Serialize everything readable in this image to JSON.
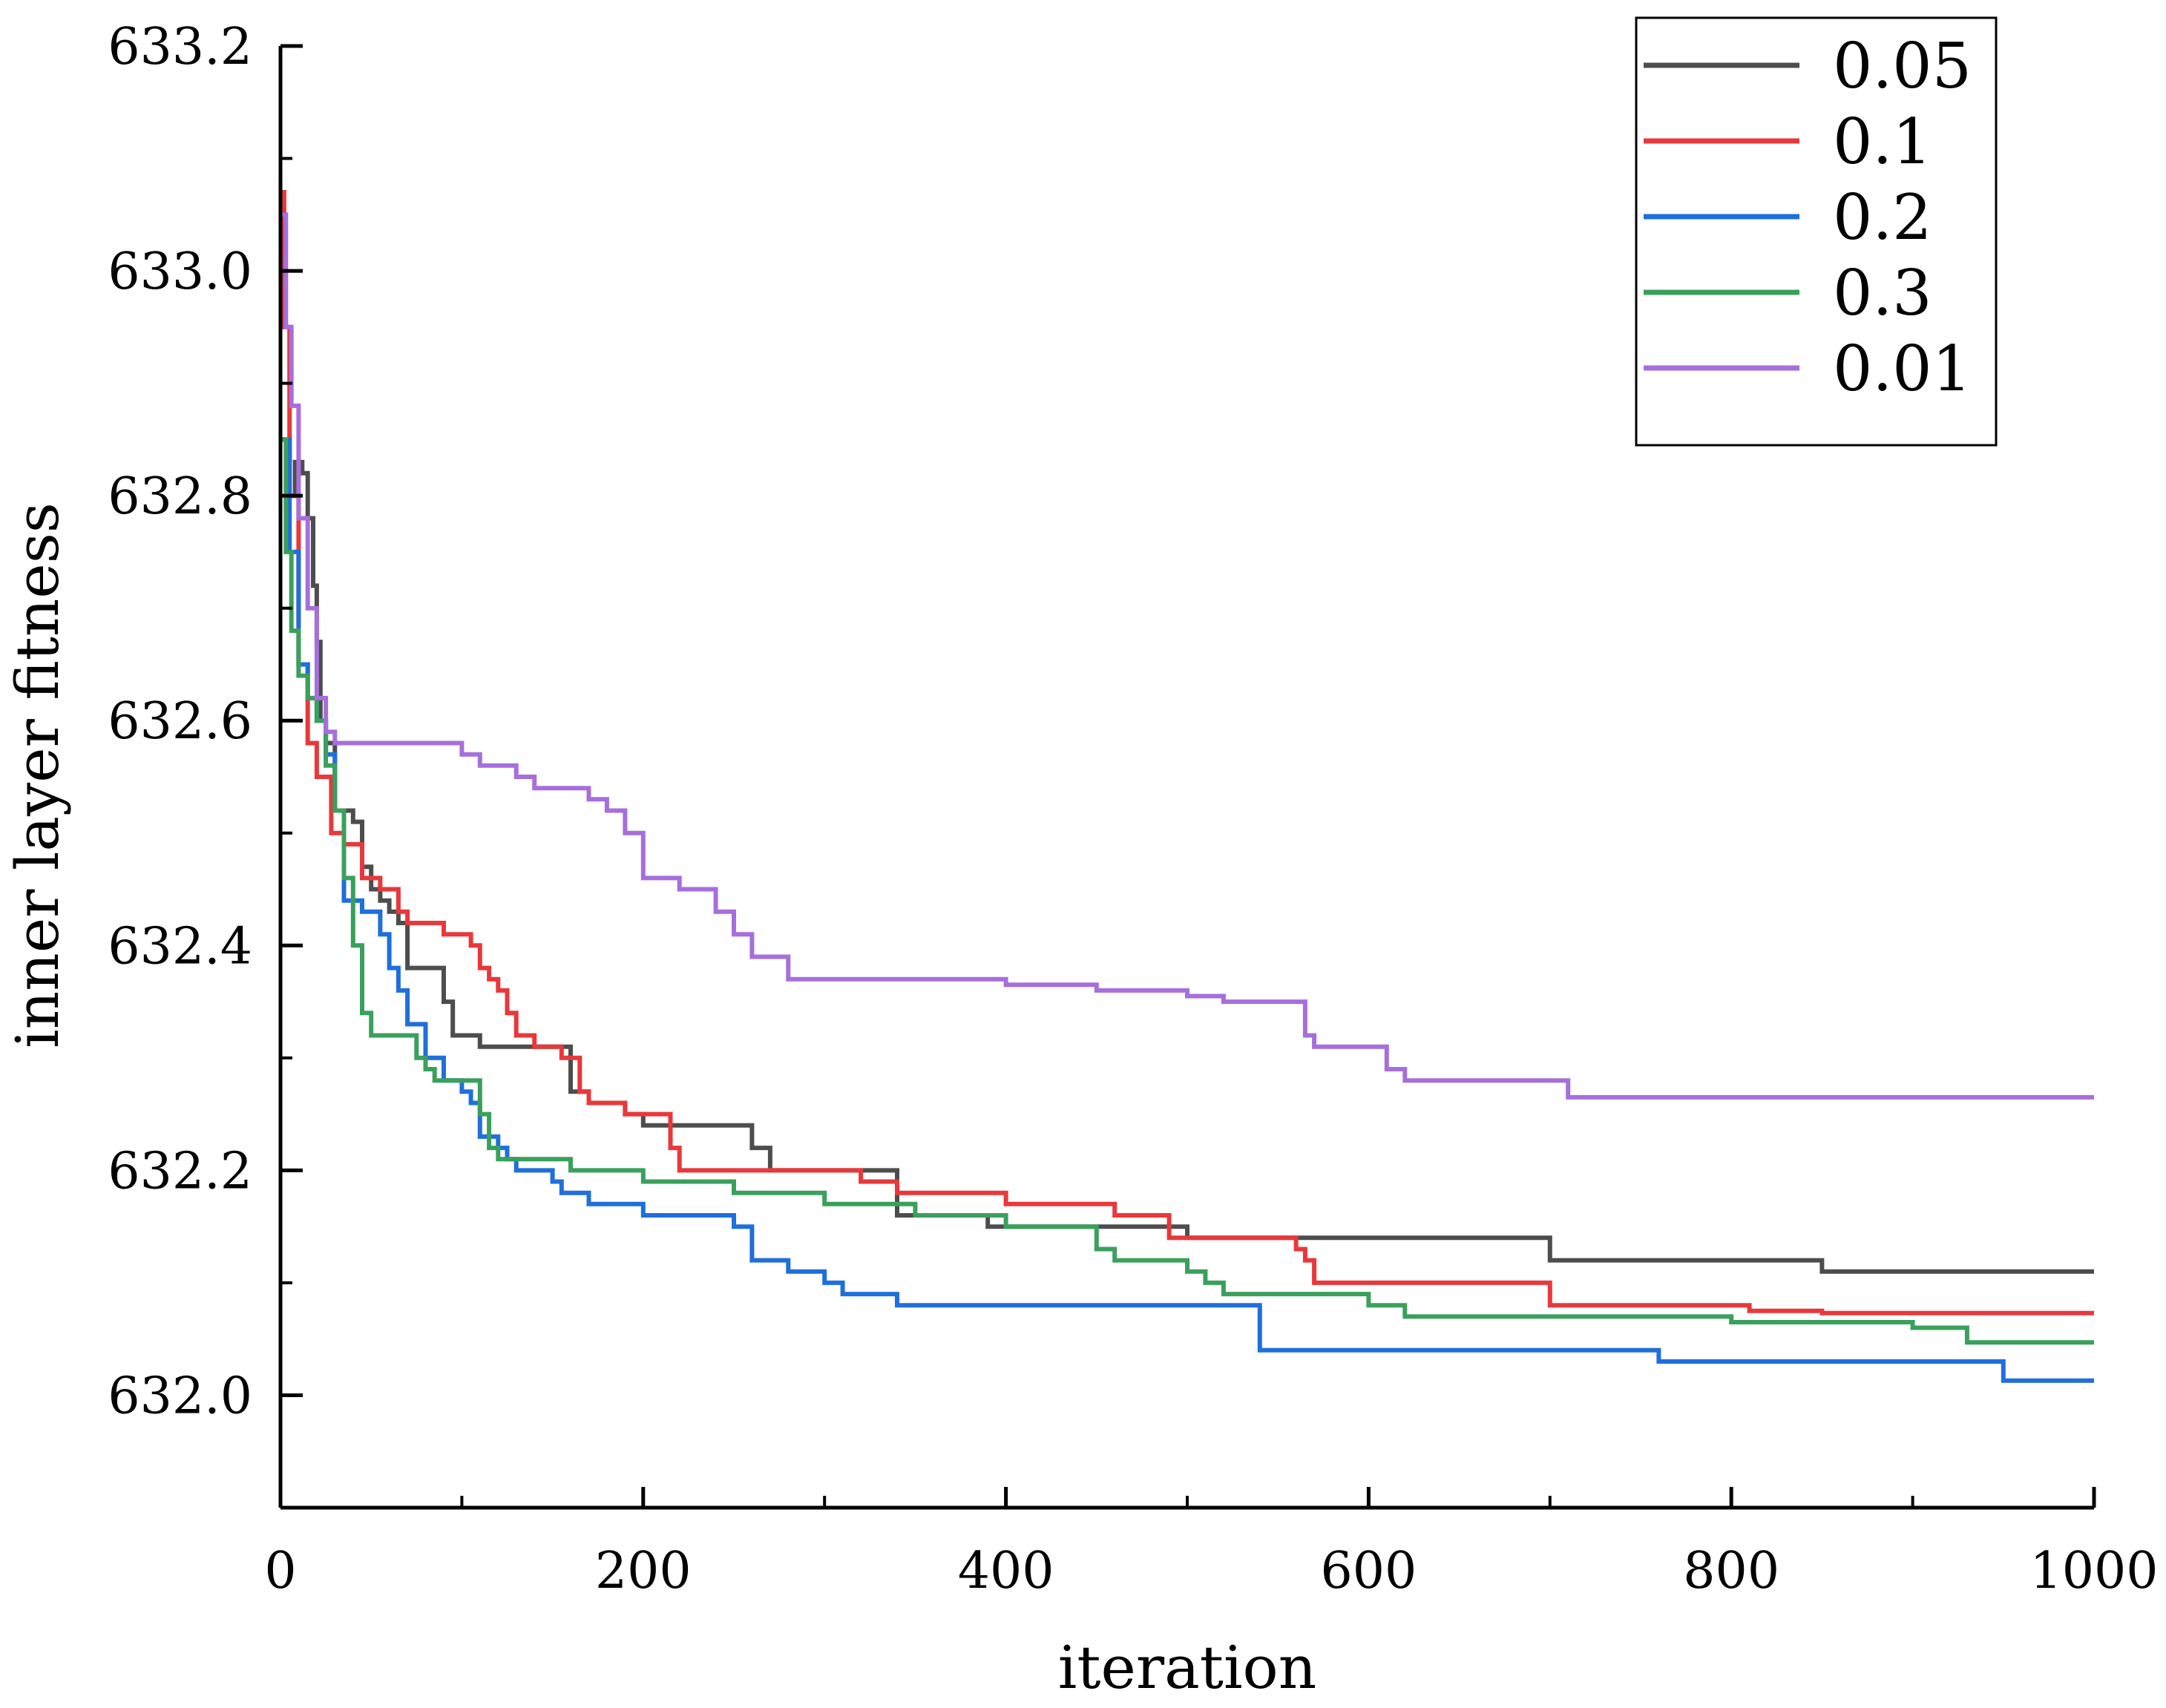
{
  "chart_data": {
    "type": "line",
    "title": "",
    "xlabel": "iteration",
    "ylabel": "inner layer fitness",
    "xlim": [
      0,
      1000
    ],
    "ylim": [
      631.9,
      633.2
    ],
    "xticks": [
      0,
      200,
      400,
      600,
      800,
      1000
    ],
    "xtick_labels": [
      "0",
      "200",
      "400",
      "600",
      "800",
      "1000"
    ],
    "yticks": [
      632.0,
      632.2,
      632.4,
      632.6,
      632.8,
      633.0,
      633.2
    ],
    "ytick_labels": [
      "632.0",
      "632.2",
      "632.4",
      "632.6",
      "632.8",
      "633.0",
      "633.2"
    ],
    "legend_position": "top-right",
    "series": [
      {
        "name": "0.05",
        "color": "#4d4d4d",
        "x": [
          0,
          5,
          8,
          12,
          15,
          18,
          20,
          22,
          25,
          30,
          35,
          40,
          45,
          50,
          55,
          60,
          65,
          70,
          75,
          80,
          90,
          95,
          100,
          110,
          125,
          135,
          150,
          160,
          170,
          190,
          200,
          250,
          260,
          270,
          330,
          340,
          350,
          380,
          390,
          500,
          600,
          690,
          700,
          760,
          840,
          850,
          1000
        ],
        "y": [
          632.85,
          632.8,
          632.83,
          632.82,
          632.78,
          632.72,
          632.67,
          632.6,
          632.58,
          632.52,
          632.52,
          632.51,
          632.47,
          632.45,
          632.44,
          632.43,
          632.42,
          632.38,
          632.38,
          632.38,
          632.35,
          632.32,
          632.32,
          632.31,
          632.31,
          632.31,
          632.31,
          632.27,
          632.26,
          632.25,
          632.24,
          632.24,
          632.22,
          632.2,
          632.2,
          632.16,
          632.16,
          632.16,
          632.15,
          632.14,
          632.14,
          632.14,
          632.12,
          632.12,
          632.12,
          632.11,
          632.11
        ]
      },
      {
        "name": "0.1",
        "color": "#e8383b",
        "x": [
          0,
          2,
          5,
          10,
          15,
          20,
          25,
          28,
          30,
          35,
          45,
          55,
          65,
          70,
          75,
          80,
          90,
          105,
          110,
          115,
          120,
          125,
          130,
          140,
          155,
          165,
          170,
          180,
          190,
          210,
          215,
          220,
          260,
          300,
          320,
          340,
          360,
          400,
          420,
          460,
          480,
          490,
          560,
          565,
          570,
          680,
          700,
          800,
          810,
          850,
          1000
        ],
        "y": [
          633.07,
          632.95,
          632.8,
          632.65,
          632.58,
          632.55,
          632.55,
          632.5,
          632.5,
          632.49,
          632.46,
          632.45,
          632.43,
          632.42,
          632.42,
          632.42,
          632.41,
          632.4,
          632.38,
          632.37,
          632.36,
          632.34,
          632.32,
          632.31,
          632.3,
          632.27,
          632.26,
          632.26,
          632.25,
          632.25,
          632.22,
          632.2,
          632.2,
          632.2,
          632.19,
          632.18,
          632.18,
          632.17,
          632.17,
          632.16,
          632.16,
          632.14,
          632.13,
          632.12,
          632.1,
          632.1,
          632.08,
          632.08,
          632.075,
          632.073,
          632.073
        ]
      },
      {
        "name": "0.2",
        "color": "#1f6fdc",
        "x": [
          0,
          5,
          10,
          15,
          20,
          25,
          30,
          35,
          45,
          55,
          60,
          65,
          70,
          80,
          90,
          100,
          105,
          110,
          115,
          120,
          125,
          130,
          140,
          150,
          155,
          160,
          170,
          190,
          200,
          210,
          220,
          250,
          260,
          280,
          300,
          310,
          340,
          350,
          400,
          530,
          540,
          600,
          740,
          760,
          800,
          850,
          940,
          950,
          1000
        ],
        "y": [
          632.85,
          632.75,
          632.65,
          632.62,
          632.6,
          632.57,
          632.52,
          632.44,
          632.43,
          632.41,
          632.38,
          632.36,
          632.33,
          632.3,
          632.28,
          632.27,
          632.26,
          632.23,
          632.23,
          632.22,
          632.21,
          632.2,
          632.2,
          632.19,
          632.18,
          632.18,
          632.17,
          632.17,
          632.16,
          632.16,
          632.16,
          632.15,
          632.12,
          632.11,
          632.1,
          632.09,
          632.08,
          632.08,
          632.08,
          632.08,
          632.04,
          632.04,
          632.04,
          632.03,
          632.03,
          632.03,
          632.03,
          632.013,
          632.013
        ]
      },
      {
        "name": "0.3",
        "color": "#3aa05c",
        "x": [
          0,
          3,
          6,
          10,
          15,
          20,
          25,
          30,
          35,
          40,
          45,
          50,
          55,
          65,
          75,
          80,
          85,
          90,
          100,
          110,
          115,
          120,
          130,
          140,
          160,
          180,
          200,
          250,
          300,
          350,
          400,
          450,
          460,
          500,
          510,
          520,
          600,
          620,
          700,
          800,
          900,
          920,
          930,
          1000
        ],
        "y": [
          632.85,
          632.75,
          632.68,
          632.64,
          632.62,
          632.6,
          632.56,
          632.52,
          632.46,
          632.4,
          632.34,
          632.32,
          632.32,
          632.32,
          632.3,
          632.29,
          632.28,
          632.28,
          632.28,
          632.25,
          632.22,
          632.21,
          632.21,
          632.21,
          632.2,
          632.2,
          632.19,
          632.18,
          632.17,
          632.16,
          632.15,
          632.13,
          632.12,
          632.11,
          632.1,
          632.09,
          632.08,
          632.07,
          632.07,
          632.065,
          632.06,
          632.06,
          632.047,
          632.047
        ]
      },
      {
        "name": "0.01",
        "color": "#a66fdb",
        "x": [
          0,
          3,
          6,
          10,
          15,
          20,
          25,
          30,
          40,
          60,
          90,
          100,
          110,
          120,
          130,
          140,
          150,
          170,
          180,
          190,
          200,
          220,
          240,
          250,
          260,
          280,
          300,
          330,
          350,
          400,
          450,
          500,
          520,
          560,
          565,
          570,
          610,
          620,
          700,
          710,
          750,
          1000
        ],
        "y": [
          633.05,
          632.95,
          632.88,
          632.78,
          632.7,
          632.62,
          632.59,
          632.58,
          632.58,
          632.58,
          632.58,
          632.57,
          632.56,
          632.56,
          632.55,
          632.54,
          632.54,
          632.53,
          632.52,
          632.5,
          632.46,
          632.45,
          632.43,
          632.41,
          632.39,
          632.37,
          632.37,
          632.37,
          632.37,
          632.365,
          632.36,
          632.355,
          632.35,
          632.35,
          632.32,
          632.31,
          632.29,
          632.28,
          632.28,
          632.265,
          632.265,
          632.265
        ]
      }
    ]
  }
}
